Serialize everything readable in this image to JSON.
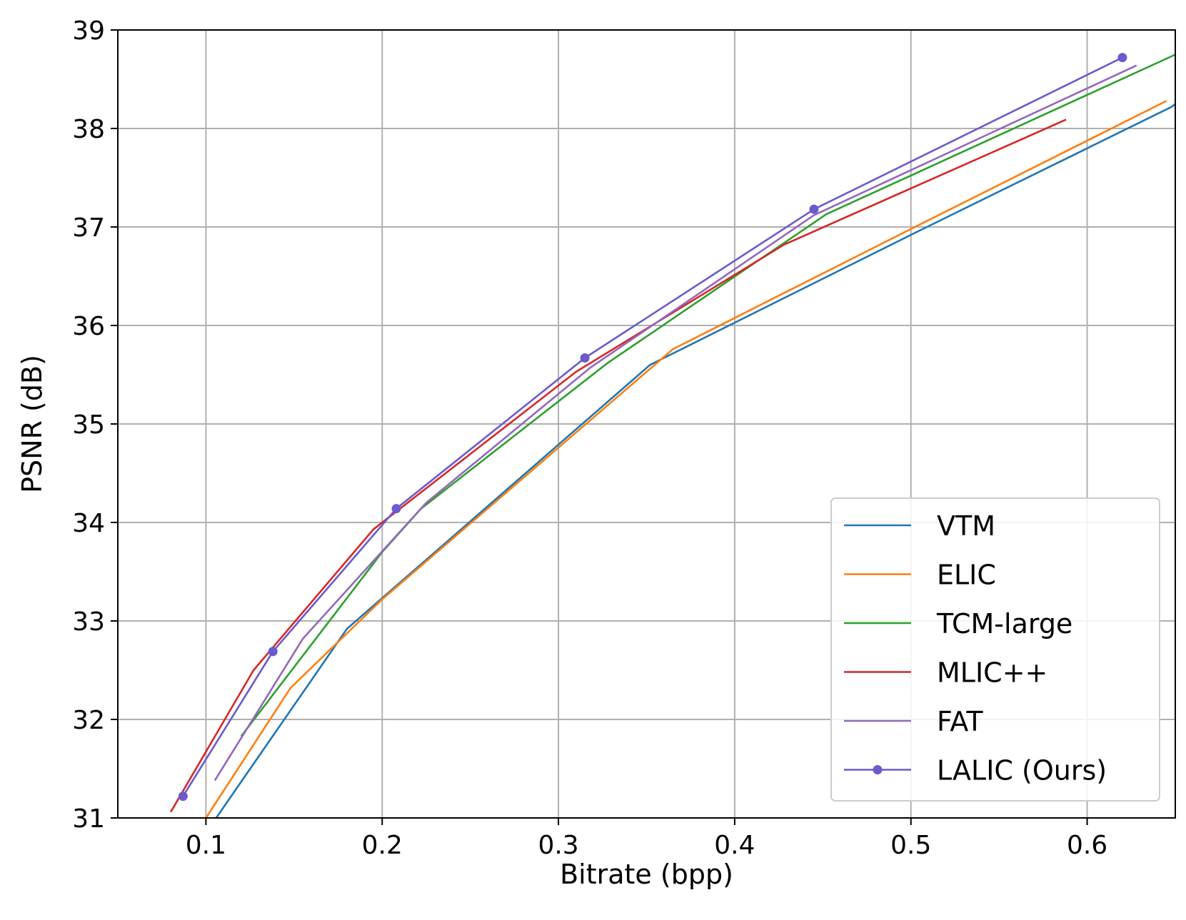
{
  "chart_data": {
    "type": "line",
    "title": "",
    "xlabel": "Bitrate (bpp)",
    "ylabel": "PSNR (dB)",
    "xlim": [
      0.05,
      0.65
    ],
    "ylim": [
      31,
      39
    ],
    "xticks": [
      0.1,
      0.2,
      0.3,
      0.4,
      0.5,
      0.6
    ],
    "xtick_labels": [
      "0.1",
      "0.2",
      "0.3",
      "0.4",
      "0.5",
      "0.6"
    ],
    "yticks": [
      31,
      32,
      33,
      34,
      35,
      36,
      37,
      38,
      39
    ],
    "ytick_labels": [
      "31",
      "32",
      "33",
      "34",
      "35",
      "36",
      "37",
      "38",
      "39"
    ],
    "grid": true,
    "legend_position": "lower-right",
    "series": [
      {
        "name": "VTM",
        "color": "#1f77b4",
        "marker": false,
        "points": [
          [
            0.105,
            30.98
          ],
          [
            0.18,
            32.92
          ],
          [
            0.352,
            35.6
          ],
          [
            0.5,
            36.92
          ],
          [
            0.648,
            38.22
          ],
          [
            0.65,
            38.25
          ]
        ]
      },
      {
        "name": "ELIC",
        "color": "#ff7f0e",
        "marker": false,
        "points": [
          [
            0.1,
            31.0
          ],
          [
            0.148,
            32.32
          ],
          [
            0.2,
            33.22
          ],
          [
            0.365,
            35.76
          ],
          [
            0.5,
            36.98
          ],
          [
            0.645,
            38.28
          ]
        ]
      },
      {
        "name": "TCM-large",
        "color": "#2ca02c",
        "marker": false,
        "points": [
          [
            0.12,
            31.83
          ],
          [
            0.2,
            33.7
          ],
          [
            0.222,
            34.14
          ],
          [
            0.328,
            35.62
          ],
          [
            0.452,
            37.13
          ],
          [
            0.65,
            38.75
          ]
        ]
      },
      {
        "name": "MLIC++",
        "color": "#d62728",
        "marker": false,
        "points": [
          [
            0.08,
            31.06
          ],
          [
            0.127,
            32.5
          ],
          [
            0.195,
            33.93
          ],
          [
            0.31,
            35.53
          ],
          [
            0.428,
            36.82
          ],
          [
            0.588,
            38.09
          ]
        ]
      },
      {
        "name": "FAT",
        "color": "#9467bd",
        "marker": false,
        "points": [
          [
            0.105,
            31.38
          ],
          [
            0.155,
            32.82
          ],
          [
            0.225,
            34.2
          ],
          [
            0.318,
            35.57
          ],
          [
            0.445,
            37.12
          ],
          [
            0.628,
            38.64
          ]
        ]
      },
      {
        "name": "LALIC (Ours)",
        "color": "#6a5acd",
        "marker": true,
        "points": [
          [
            0.087,
            31.22
          ],
          [
            0.138,
            32.69
          ],
          [
            0.208,
            34.14
          ],
          [
            0.315,
            35.67
          ],
          [
            0.445,
            37.18
          ],
          [
            0.62,
            38.72
          ]
        ]
      }
    ]
  }
}
